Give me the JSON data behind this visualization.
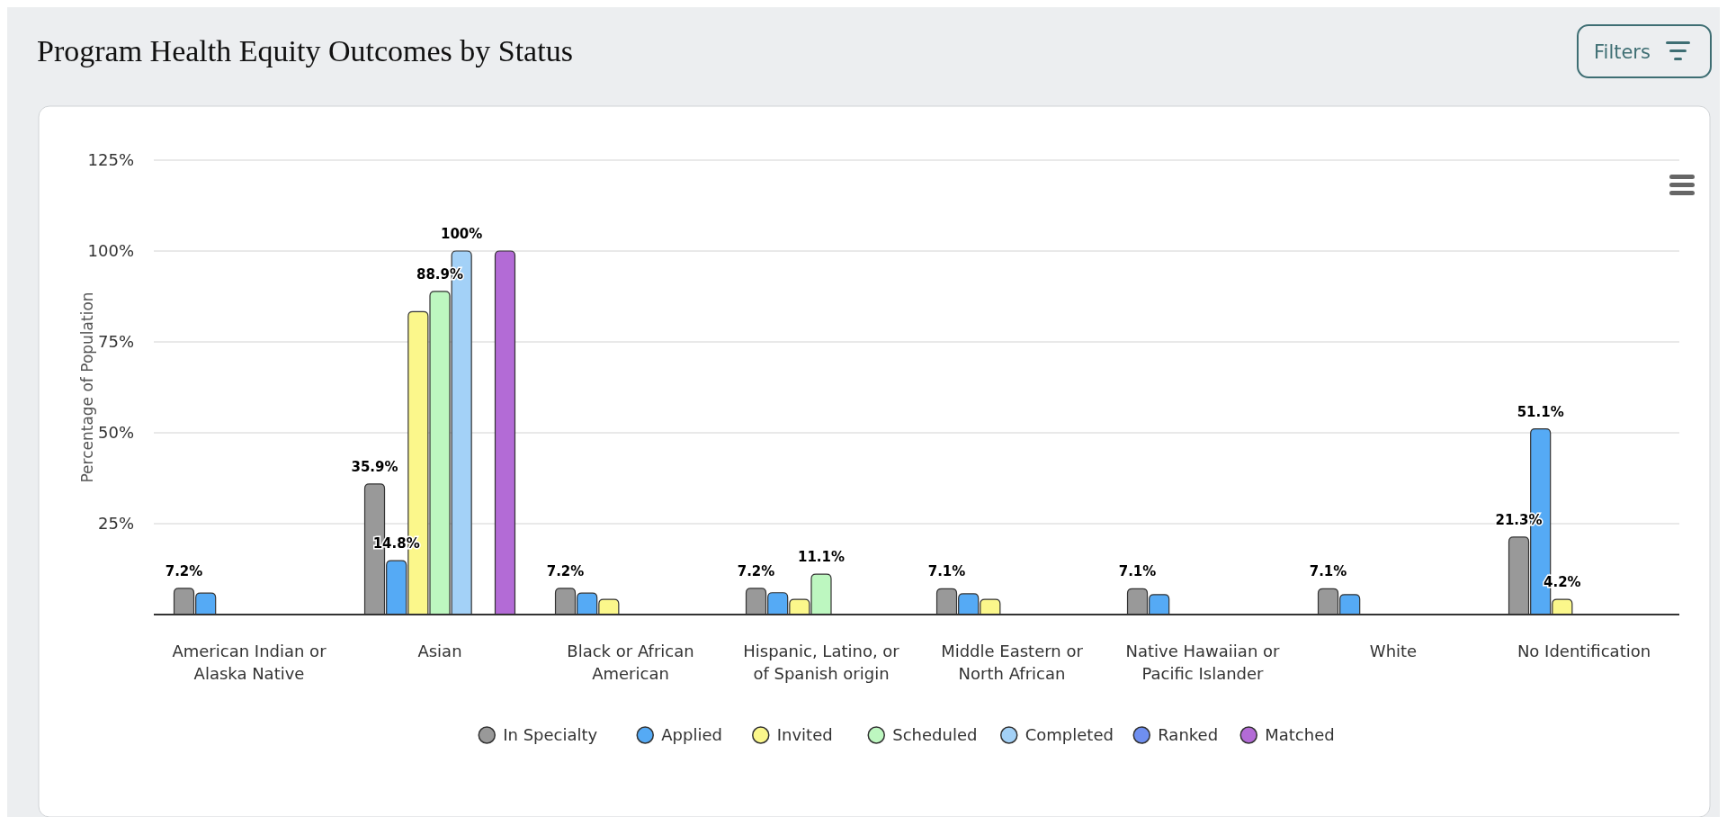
{
  "chart_data": {
    "type": "bar",
    "title": "Program Health Equity Outcomes by Status",
    "ylabel": "Percentage of Population",
    "categories": [
      "American Indian or Alaska Native",
      "Asian",
      "Black or African American",
      "Hispanic, Latino, or of Spanish origin",
      "Middle Eastern or North African",
      "Native Hawaiian or Pacific Islander",
      "White",
      "No Identification"
    ],
    "series": [
      {
        "name": "In Specialty",
        "color": "#999999",
        "values": [
          7.2,
          35.9,
          7.2,
          7.2,
          7.1,
          7.1,
          7.1,
          21.3
        ],
        "value_labels": [
          "7.2%",
          "35.9%",
          "7.2%",
          "7.2%",
          "7.1%",
          "7.1%",
          "7.1%",
          "21.3%"
        ]
      },
      {
        "name": "Applied",
        "color": "#55aaf5",
        "values": [
          5.9,
          14.8,
          5.9,
          6.0,
          5.7,
          5.5,
          5.5,
          51.1
        ],
        "value_labels": [
          null,
          "14.8%",
          null,
          null,
          null,
          null,
          null,
          "51.1%"
        ]
      },
      {
        "name": "Invited",
        "color": "#fbf78b",
        "values": [
          null,
          83.3,
          4.2,
          4.2,
          4.2,
          null,
          null,
          4.2
        ],
        "value_labels": [
          null,
          null,
          null,
          null,
          null,
          null,
          null,
          "4.2%"
        ]
      },
      {
        "name": "Scheduled",
        "color": "#bdf7c0",
        "values": [
          null,
          88.9,
          null,
          11.1,
          null,
          null,
          null,
          null
        ],
        "value_labels": [
          null,
          "88.9%",
          null,
          "11.1%",
          null,
          null,
          null,
          null
        ]
      },
      {
        "name": "Completed",
        "color": "#a3d1f7",
        "values": [
          null,
          100,
          null,
          null,
          null,
          null,
          null,
          null
        ],
        "value_labels": [
          null,
          "100%",
          null,
          null,
          null,
          null,
          null,
          null
        ]
      },
      {
        "name": "Ranked",
        "color": "#6f8ff0",
        "values": [
          null,
          null,
          null,
          null,
          null,
          null,
          null,
          null
        ]
      },
      {
        "name": "Matched",
        "color": "#b36bd6",
        "values": [
          null,
          100,
          null,
          null,
          null,
          null,
          null,
          null
        ]
      }
    ],
    "ylim": [
      0,
      125
    ],
    "yticks": [
      {
        "value": 25,
        "label": "25%"
      },
      {
        "value": 50,
        "label": "50%"
      },
      {
        "value": 75,
        "label": "75%"
      },
      {
        "value": 100,
        "label": "100%"
      },
      {
        "value": 125,
        "label": "125%"
      }
    ],
    "grid": "y",
    "legend": "bottom",
    "annotations": [
      "Filters"
    ]
  }
}
